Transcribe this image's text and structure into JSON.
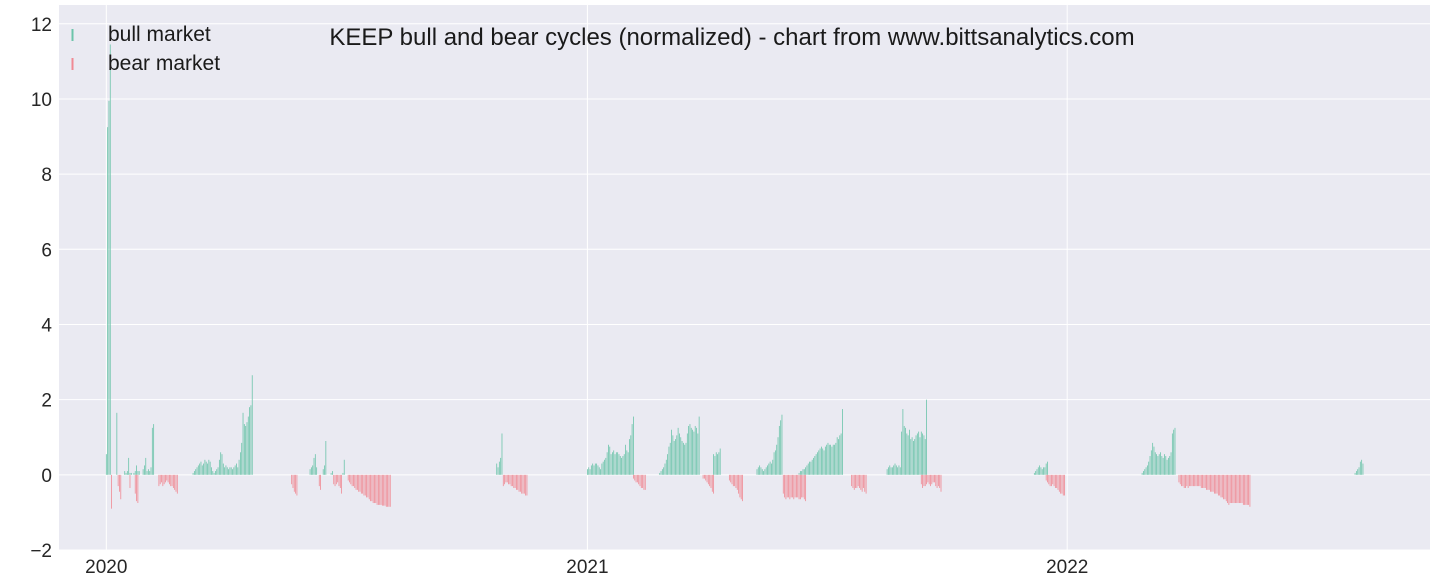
{
  "chart_data": {
    "type": "bar",
    "title": "KEEP bull and bear cycles (normalized)  - chart from www.bittsanalytics.com",
    "xlabel": "",
    "ylabel": "",
    "ylim": [
      -2,
      12.5
    ],
    "xlim": [
      "2019-11-26",
      "2022-10-04"
    ],
    "yticks": [
      -2,
      0,
      2,
      4,
      6,
      8,
      10,
      12
    ],
    "ytick_labels": [
      "−2",
      "0",
      "2",
      "4",
      "6",
      "8",
      "10",
      "12"
    ],
    "xticks": [
      "2020-01-01",
      "2021-01-01",
      "2022-01-01"
    ],
    "xtick_labels": [
      "2020",
      "2021",
      "2022"
    ],
    "grid": true,
    "legend_position": "top-left",
    "colors": {
      "bull": "#6cc4aa",
      "bear": "#f08a94",
      "background": "#eaeaf2",
      "grid": "#ffffff"
    },
    "series": [
      {
        "name": "bull market",
        "key": "bull",
        "segments": [
          {
            "start": "2020-01-01",
            "values": [
              0.55,
              9.25,
              9.95,
              11.45
            ]
          },
          {
            "start": "2020-01-09",
            "values": [
              1.65
            ]
          },
          {
            "start": "2020-01-15",
            "values": [
              0.1,
              0.05,
              0.1,
              0.45,
              0.05,
              0.05
            ]
          },
          {
            "start": "2020-01-22",
            "values": [
              0.05,
              0.1,
              0.25,
              0.1,
              0.1
            ]
          },
          {
            "start": "2020-01-29",
            "values": [
              0.15,
              0.25,
              0.45,
              0.1,
              0.15,
              0.1,
              0.2,
              1.25,
              1.35
            ]
          },
          {
            "start": "2020-03-07",
            "values": [
              0.05,
              0.1,
              0.15,
              0.2,
              0.25,
              0.3,
              0.35,
              0.25,
              0.3,
              0.4,
              0.35,
              0.3,
              0.4,
              0.35,
              0.2,
              0.1,
              0.05,
              0.1,
              0.15,
              0.2,
              0.4,
              0.6,
              0.55,
              0.3,
              0.2,
              0.25,
              0.2,
              0.15,
              0.2,
              0.2,
              0.15,
              0.2,
              0.25,
              0.3,
              0.2,
              0.4,
              0.6,
              0.85,
              1.65,
              1.35,
              1.3,
              1.4,
              1.55,
              1.8,
              1.85,
              2.65
            ]
          },
          {
            "start": "2020-06-04",
            "values": [
              0.15,
              0.2,
              0.25,
              0.45,
              0.55,
              0.2
            ]
          },
          {
            "start": "2020-06-14",
            "values": [
              0.15,
              0.25,
              0.9
            ]
          },
          {
            "start": "2020-06-20",
            "values": [
              0.05,
              0.1
            ]
          },
          {
            "start": "2020-06-29",
            "values": [
              0.05,
              0.4
            ]
          },
          {
            "start": "2020-10-24",
            "values": [
              0.3,
              0.2,
              0.35,
              0.45,
              1.1
            ]
          },
          {
            "start": "2021-01-01",
            "values": [
              0.15,
              0.2,
              0.15,
              0.25,
              0.3,
              0.25,
              0.3,
              0.3,
              0.25,
              0.2,
              0.15,
              0.3,
              0.35,
              0.4,
              0.45,
              0.6,
              0.8,
              0.75,
              0.55,
              0.6,
              0.65,
              0.55,
              0.6,
              0.6,
              0.55,
              0.5,
              0.45,
              0.5,
              0.55,
              0.8,
              0.65,
              0.6,
              0.95,
              1.05,
              1.35,
              1.55
            ]
          },
          {
            "start": "2021-02-25",
            "values": [
              0.05,
              0.1,
              0.15,
              0.2,
              0.3,
              0.4,
              0.55,
              0.75,
              0.85,
              1.2,
              1.05,
              0.9,
              0.95,
              1.05,
              1.25,
              1.1,
              1.0,
              0.9,
              0.85,
              0.8,
              0.85,
              1.1,
              1.3,
              1.35,
              1.25,
              1.2,
              1.15,
              1.3,
              1.25,
              1.1,
              1.55
            ]
          },
          {
            "start": "2021-04-07",
            "values": [
              0.55,
              0.5,
              0.6,
              0.55,
              0.6,
              0.7
            ]
          },
          {
            "start": "2021-05-10",
            "values": [
              0.15,
              0.2,
              0.25,
              0.2,
              0.15,
              0.1,
              0.15,
              0.2,
              0.25,
              0.3,
              0.35,
              0.3,
              0.4,
              0.6,
              0.65,
              0.8,
              1.0,
              1.3,
              1.45,
              1.6
            ]
          },
          {
            "start": "2021-06-11",
            "values": [
              0.05,
              0.1,
              0.1,
              0.15,
              0.15,
              0.2,
              0.25,
              0.3,
              0.35,
              0.35,
              0.4,
              0.45,
              0.5,
              0.55,
              0.6,
              0.65,
              0.7,
              0.75,
              0.7,
              0.65,
              0.75,
              0.8,
              0.85,
              0.8,
              0.8,
              0.75,
              0.8,
              0.8,
              0.85,
              1.0,
              0.95,
              1.05,
              1.1,
              1.75
            ]
          },
          {
            "start": "2021-08-17",
            "values": [
              0.15,
              0.2,
              0.25,
              0.2,
              0.2,
              0.25,
              0.3,
              0.25,
              0.2,
              0.25,
              0.2,
              1.15,
              1.75,
              1.3,
              1.25,
              1.1,
              1.05,
              1.2,
              0.95,
              1.0,
              0.9,
              0.95,
              1.05,
              1.1,
              1.15,
              1.0,
              1.15,
              1.1,
              1.05,
              0.95,
              2.0
            ]
          },
          {
            "start": "2021-12-07",
            "values": [
              0.05,
              0.1,
              0.15,
              0.2,
              0.25,
              0.2,
              0.15,
              0.2,
              0.2,
              0.3,
              0.35
            ]
          },
          {
            "start": "2022-02-27",
            "values": [
              0.05,
              0.1,
              0.15,
              0.2,
              0.25,
              0.35,
              0.5,
              0.65,
              0.85,
              0.75,
              0.6,
              0.55,
              0.5,
              0.55,
              0.6,
              0.5,
              0.45,
              0.55,
              0.5,
              0.4,
              0.45,
              0.5,
              0.6,
              1.1,
              1.2,
              1.25
            ]
          },
          {
            "start": "2022-08-08",
            "values": [
              0.05,
              0.1,
              0.15,
              0.2,
              0.35,
              0.4,
              0.3
            ]
          }
        ]
      },
      {
        "name": "bear market",
        "key": "bear",
        "segments": [
          {
            "start": "2020-01-05",
            "values": [
              -0.9
            ]
          },
          {
            "start": "2020-01-10",
            "values": [
              -0.3,
              -0.45,
              -0.65
            ]
          },
          {
            "start": "2020-01-19",
            "values": [
              -0.35
            ]
          },
          {
            "start": "2020-01-23",
            "values": [
              -0.5,
              -0.7,
              -0.75
            ]
          },
          {
            "start": "2020-02-10",
            "values": [
              -0.3,
              -0.25,
              -0.2,
              -0.3,
              -0.25,
              -0.2,
              -0.15,
              -0.2,
              -0.25,
              -0.3,
              -0.3,
              -0.35,
              -0.4,
              -0.45,
              -0.5
            ]
          },
          {
            "start": "2020-05-21",
            "values": [
              -0.25,
              -0.35,
              -0.45,
              -0.5,
              -0.55
            ]
          },
          {
            "start": "2020-06-11",
            "values": [
              -0.3,
              -0.4
            ]
          },
          {
            "start": "2020-06-22",
            "values": [
              -0.25,
              -0.3,
              -0.25,
              -0.2,
              -0.3,
              -0.35,
              -0.5
            ]
          },
          {
            "start": "2020-07-03",
            "values": [
              -0.15,
              -0.2,
              -0.25,
              -0.3,
              -0.3,
              -0.35,
              -0.4,
              -0.4,
              -0.45,
              -0.45,
              -0.5,
              -0.5,
              -0.55,
              -0.55,
              -0.6,
              -0.6,
              -0.65,
              -0.7,
              -0.7,
              -0.75,
              -0.75,
              -0.75,
              -0.8,
              -0.8,
              -0.8,
              -0.8,
              -0.82,
              -0.82,
              -0.82,
              -0.85,
              -0.85,
              -0.85,
              -0.85
            ]
          },
          {
            "start": "2020-10-29",
            "values": [
              -0.3,
              -0.25,
              -0.2,
              -0.2,
              -0.25,
              -0.25,
              -0.3,
              -0.3,
              -0.35,
              -0.35,
              -0.4,
              -0.4,
              -0.45,
              -0.45,
              -0.5,
              -0.5,
              -0.5,
              -0.55,
              -0.55
            ]
          },
          {
            "start": "2021-02-05",
            "values": [
              -0.1,
              -0.15,
              -0.2,
              -0.2,
              -0.25,
              -0.3,
              -0.35,
              -0.35,
              -0.4,
              -0.4
            ]
          },
          {
            "start": "2021-03-30",
            "values": [
              -0.1,
              -0.1,
              -0.15,
              -0.2,
              -0.25,
              -0.3,
              -0.35,
              -0.45,
              -0.5
            ]
          },
          {
            "start": "2021-04-19",
            "values": [
              -0.15,
              -0.2,
              -0.25,
              -0.3,
              -0.3,
              -0.35,
              -0.4,
              -0.5,
              -0.6,
              -0.65,
              -0.7
            ]
          },
          {
            "start": "2021-05-30",
            "values": [
              -0.5,
              -0.6,
              -0.65,
              -0.6,
              -0.6,
              -0.65,
              -0.6,
              -0.6,
              -0.65,
              -0.6,
              -0.6,
              -0.6,
              -0.65,
              -0.65,
              -0.6,
              -0.6,
              -0.65,
              -0.7
            ]
          },
          {
            "start": "2021-07-21",
            "values": [
              -0.3,
              -0.35,
              -0.4,
              -0.35,
              -0.35,
              -0.3,
              -0.35,
              -0.4,
              -0.45,
              -0.35,
              -0.45,
              -0.5
            ]
          },
          {
            "start": "2021-09-12",
            "values": [
              -0.25,
              -0.35,
              -0.3,
              -0.3,
              -0.25,
              -0.2,
              -0.25,
              -0.3,
              -0.25,
              -0.2,
              -0.2,
              -0.3,
              -0.35,
              -0.3,
              -0.35,
              -0.45
            ]
          },
          {
            "start": "2021-12-16",
            "values": [
              -0.15,
              -0.2,
              -0.25,
              -0.3,
              -0.3,
              -0.25,
              -0.3,
              -0.35,
              -0.35,
              -0.4,
              -0.45,
              -0.5,
              -0.5,
              -0.55,
              -0.55
            ]
          },
          {
            "start": "2022-03-27",
            "values": [
              -0.2,
              -0.25,
              -0.3,
              -0.3,
              -0.35,
              -0.35,
              -0.3,
              -0.35,
              -0.3,
              -0.3,
              -0.3,
              -0.3,
              -0.3,
              -0.3,
              -0.3,
              -0.3,
              -0.3,
              -0.35,
              -0.35,
              -0.35,
              -0.35,
              -0.4,
              -0.4,
              -0.4,
              -0.45,
              -0.45,
              -0.45,
              -0.5,
              -0.5,
              -0.5,
              -0.55,
              -0.55,
              -0.6,
              -0.6,
              -0.65,
              -0.65,
              -0.7,
              -0.75,
              -0.8,
              -0.75,
              -0.75,
              -0.75,
              -0.75,
              -0.75,
              -0.75,
              -0.75,
              -0.75,
              -0.75,
              -0.75,
              -0.8,
              -0.8,
              -0.8,
              -0.8,
              -0.8,
              -0.85
            ]
          }
        ]
      }
    ]
  }
}
